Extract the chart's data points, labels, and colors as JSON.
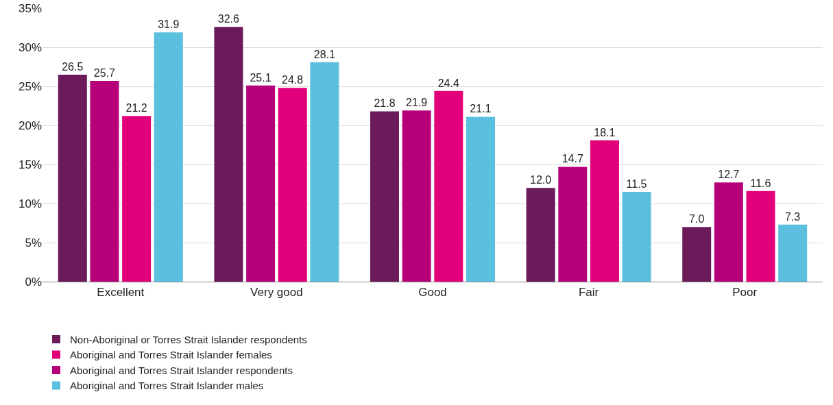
{
  "chart_data": {
    "type": "bar",
    "categories": [
      "Excellent",
      "Very good",
      "Good",
      "Fair",
      "Poor"
    ],
    "series": [
      {
        "name": "Non-Aboriginal or Torres Strait Islander respondents",
        "color": "#6b1a5a",
        "values": [
          26.5,
          32.6,
          21.8,
          12.0,
          7.0
        ],
        "value_labels": [
          "26.5",
          "32.6",
          "21.8",
          "12.0",
          "7.0"
        ]
      },
      {
        "name": "Aboriginal and Torres Strait Islander respondents",
        "color": "#b5007a",
        "values": [
          25.7,
          25.1,
          21.9,
          14.7,
          12.7
        ],
        "value_labels": [
          "25.7",
          "25.1",
          "21.9",
          "14.7",
          "12.7"
        ]
      },
      {
        "name": "Aboriginal and Torres Strait Islander females",
        "color": "#e2007a",
        "values": [
          21.2,
          24.8,
          24.4,
          18.1,
          11.6
        ],
        "value_labels": [
          "21.2",
          "24.8",
          "24.4",
          "18.1",
          "11.6"
        ]
      },
      {
        "name": "Aboriginal and Torres Strait Islander males",
        "color": "#5bbfe0",
        "values": [
          31.9,
          28.1,
          21.1,
          11.5,
          7.3
        ],
        "value_labels": [
          "31.9",
          "28.1",
          "21.1",
          "11.5",
          "7.3"
        ]
      }
    ],
    "ylim": [
      0,
      35
    ],
    "yticks": [
      {
        "value": 0,
        "label": "0%"
      },
      {
        "value": 5,
        "label": "5%"
      },
      {
        "value": 10,
        "label": "10%"
      },
      {
        "value": 15,
        "label": "15%"
      },
      {
        "value": 20,
        "label": "20%"
      },
      {
        "value": 25,
        "label": "25%"
      },
      {
        "value": 30,
        "label": "30%"
      },
      {
        "value": 35,
        "label": "35%"
      }
    ],
    "grid": "y",
    "legend": "bottom"
  }
}
